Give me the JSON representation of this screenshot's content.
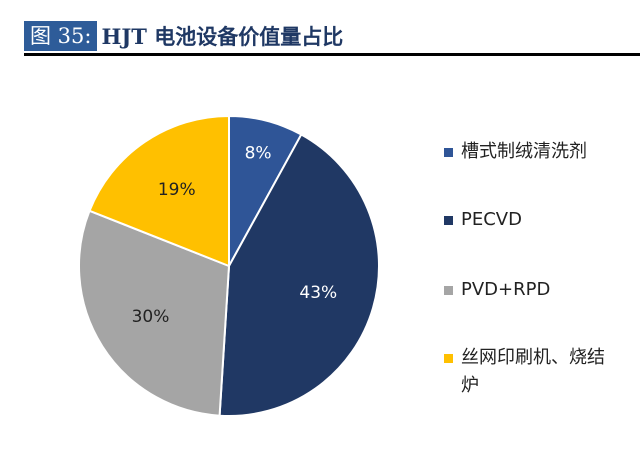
{
  "header": {
    "figure_label": "图 35:",
    "title": "HJT 电池设备价值量占比"
  },
  "chart_data": {
    "type": "pie",
    "title": "HJT 电池设备价值量占比",
    "start": "top",
    "direction": "clockwise",
    "legend_position": "right",
    "slices": [
      {
        "name": "槽式制绒清洗剂",
        "value": 8,
        "label": "8%",
        "color": "#2f5597"
      },
      {
        "name": "PECVD",
        "value": 43,
        "label": "43%",
        "color": "#203864"
      },
      {
        "name": "PVD+RPD",
        "value": 30,
        "label": "30%",
        "color": "#a5a5a5"
      },
      {
        "name": "丝网印刷机、烧结炉",
        "value": 19,
        "label": "19%",
        "color": "#ffc000"
      }
    ]
  }
}
